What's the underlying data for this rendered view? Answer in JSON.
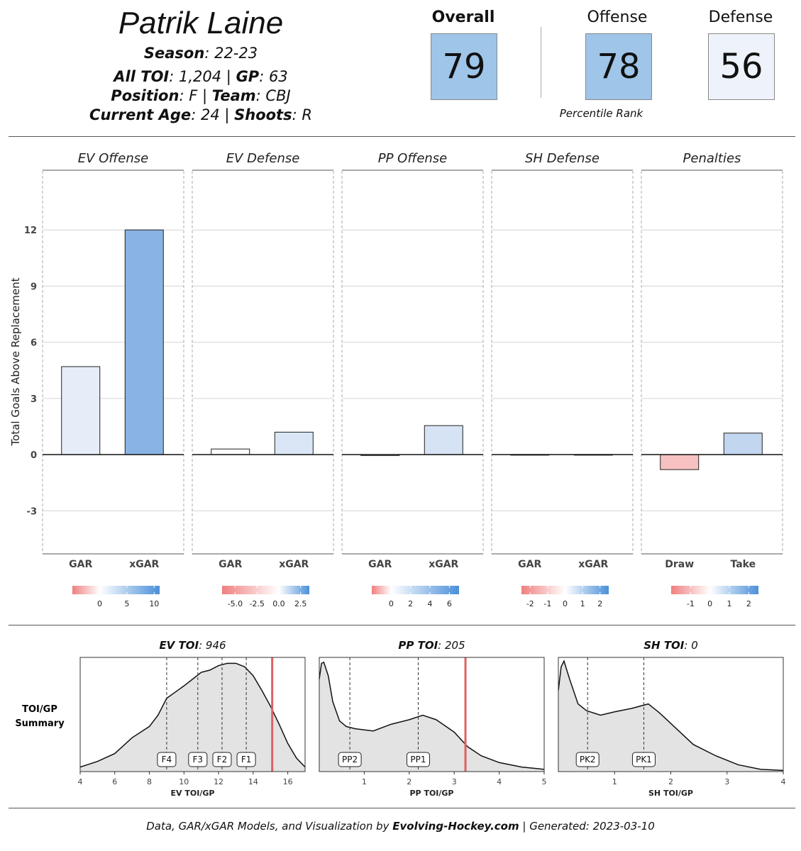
{
  "player": {
    "name": "Patrik Laine",
    "season_label": "Season",
    "season": "22-23",
    "toi_label": "All TOI",
    "toi": "1,204",
    "gp_label": "GP",
    "gp": "63",
    "position_label": "Position",
    "position": "F",
    "team_label": "Team",
    "team": "CBJ",
    "age_label": "Current Age",
    "age": "24",
    "shoots_label": "Shoots",
    "shoots": "R"
  },
  "ratings": {
    "overall_label": "Overall",
    "overall": "79",
    "overall_color": "#9fc5e8",
    "offense_label": "Offense",
    "offense": "78",
    "offense_color": "#9fc5e8",
    "defense_label": "Defense",
    "defense": "56",
    "defense_color": "#eef3fb",
    "percentile_label": "Percentile Rank"
  },
  "chart_data": [
    {
      "type": "bar",
      "ylabel": "Total Goals Above Replacement",
      "ylim": [
        -5.3,
        15
      ],
      "yticks": [
        12,
        9,
        6,
        3,
        0,
        -3
      ],
      "ytick_labels": [
        "12",
        "9",
        "6",
        "3",
        "0",
        "-3"
      ],
      "panels": [
        {
          "title": "EV Offense",
          "categories": [
            "GAR",
            "xGAR"
          ],
          "values": [
            4.7,
            12.0
          ],
          "colors": [
            "#e6edf8",
            "#89b3e2"
          ],
          "scale": {
            "min": -5,
            "max": 11,
            "ticks": [
              0,
              5,
              10
            ],
            "tick_labels": [
              "0",
              "5",
              "10"
            ]
          }
        },
        {
          "title": "EV Defense",
          "categories": [
            "GAR",
            "xGAR"
          ],
          "values": [
            0.3,
            1.2
          ],
          "colors": [
            "#fbfcfe",
            "#dae6f6"
          ],
          "scale": {
            "min": -6.5,
            "max": 3.5,
            "ticks": [
              -5,
              -2.5,
              0,
              2.5
            ],
            "tick_labels": [
              "-5.0",
              "-2.5",
              "0.0",
              "2.5"
            ]
          }
        },
        {
          "title": "PP Offense",
          "categories": [
            "GAR",
            "xGAR"
          ],
          "values": [
            -0.05,
            1.55
          ],
          "colors": [
            "#ffffff",
            "#d6e3f5"
          ],
          "scale": {
            "min": -2,
            "max": 7,
            "ticks": [
              0,
              2,
              4,
              6
            ],
            "tick_labels": [
              "0",
              "2",
              "4",
              "6"
            ]
          }
        },
        {
          "title": "SH Defense",
          "categories": [
            "GAR",
            "xGAR"
          ],
          "values": [
            0.0,
            0.0
          ],
          "colors": [
            "#ffffff",
            "#ffffff"
          ],
          "scale": {
            "min": -2.5,
            "max": 2.5,
            "ticks": [
              -2,
              -1,
              0,
              1,
              2
            ],
            "tick_labels": [
              "-2",
              "-1",
              "0",
              "1",
              "2"
            ]
          }
        },
        {
          "title": "Penalties",
          "categories": [
            "Draw",
            "Take"
          ],
          "values": [
            -0.8,
            1.15
          ],
          "colors": [
            "#f8c1c1",
            "#c3d6ef"
          ],
          "scale": {
            "min": -2,
            "max": 2.5,
            "ticks": [
              -1,
              0,
              1,
              2
            ],
            "tick_labels": [
              "-1",
              "0",
              "1",
              "2"
            ]
          }
        }
      ]
    },
    {
      "type": "area",
      "row_label": [
        "TOI/GP",
        "Summary"
      ],
      "panels": [
        {
          "title_bold": "EV TOI",
          "title_value": "946",
          "xlabel": "EV TOI/GP",
          "xlim": [
            4,
            17
          ],
          "xticks": [
            4,
            6,
            8,
            10,
            12,
            14,
            16
          ],
          "markers": [
            {
              "label": "F4",
              "x": 9.0
            },
            {
              "label": "F3",
              "x": 10.8
            },
            {
              "label": "F2",
              "x": 12.2
            },
            {
              "label": "F1",
              "x": 13.6
            }
          ],
          "player_value": 15.1,
          "density": [
            [
              4,
              0.04
            ],
            [
              5,
              0.09
            ],
            [
              6,
              0.16
            ],
            [
              7,
              0.3
            ],
            [
              8,
              0.4
            ],
            [
              8.5,
              0.5
            ],
            [
              9,
              0.65
            ],
            [
              10,
              0.76
            ],
            [
              10.5,
              0.82
            ],
            [
              11,
              0.88
            ],
            [
              11.5,
              0.9
            ],
            [
              12,
              0.94
            ],
            [
              12.5,
              0.96
            ],
            [
              13,
              0.96
            ],
            [
              13.5,
              0.93
            ],
            [
              14,
              0.85
            ],
            [
              14.5,
              0.72
            ],
            [
              15,
              0.58
            ],
            [
              15.5,
              0.42
            ],
            [
              16,
              0.25
            ],
            [
              16.5,
              0.12
            ],
            [
              17,
              0.04
            ]
          ]
        },
        {
          "title_bold": "PP TOI",
          "title_value": "205",
          "xlabel": "PP TOI/GP",
          "xlim": [
            0,
            5
          ],
          "xticks": [
            1,
            2,
            3,
            4,
            5
          ],
          "markers": [
            {
              "label": "PP2",
              "x": 0.68
            },
            {
              "label": "PP1",
              "x": 2.2
            }
          ],
          "player_value": 3.25,
          "density": [
            [
              0,
              0.82
            ],
            [
              0.05,
              0.96
            ],
            [
              0.1,
              0.97
            ],
            [
              0.2,
              0.85
            ],
            [
              0.3,
              0.62
            ],
            [
              0.45,
              0.45
            ],
            [
              0.6,
              0.4
            ],
            [
              0.8,
              0.38
            ],
            [
              1.2,
              0.36
            ],
            [
              1.6,
              0.42
            ],
            [
              2.0,
              0.46
            ],
            [
              2.3,
              0.5
            ],
            [
              2.6,
              0.46
            ],
            [
              3.0,
              0.35
            ],
            [
              3.3,
              0.22
            ],
            [
              3.6,
              0.14
            ],
            [
              4,
              0.08
            ],
            [
              4.5,
              0.04
            ],
            [
              5,
              0.02
            ]
          ]
        },
        {
          "title_bold": "SH TOI",
          "title_value": "0",
          "xlabel": "SH TOI/GP",
          "xlim": [
            0,
            4
          ],
          "xticks": [
            1,
            2,
            3,
            4
          ],
          "markers": [
            {
              "label": "PK2",
              "x": 0.52
            },
            {
              "label": "PK1",
              "x": 1.52
            }
          ],
          "player_value": null,
          "density": [
            [
              0,
              0.72
            ],
            [
              0.05,
              0.93
            ],
            [
              0.1,
              0.98
            ],
            [
              0.2,
              0.82
            ],
            [
              0.35,
              0.6
            ],
            [
              0.5,
              0.54
            ],
            [
              0.75,
              0.5
            ],
            [
              1.0,
              0.53
            ],
            [
              1.3,
              0.56
            ],
            [
              1.6,
              0.6
            ],
            [
              1.8,
              0.52
            ],
            [
              2.1,
              0.38
            ],
            [
              2.4,
              0.24
            ],
            [
              2.8,
              0.14
            ],
            [
              3.2,
              0.06
            ],
            [
              3.6,
              0.02
            ],
            [
              4,
              0.01
            ]
          ]
        }
      ]
    }
  ],
  "footer": {
    "pre": "Data, GAR/xGAR Models, and Visualization by ",
    "brand": "Evolving-Hockey.com",
    "post": " | Generated: 2023-03-10"
  }
}
